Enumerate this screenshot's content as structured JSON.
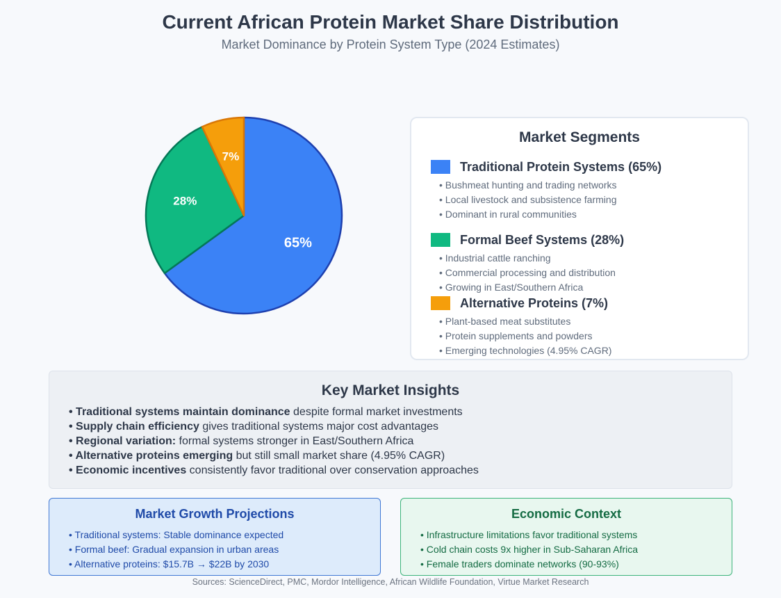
{
  "header": {
    "title": "Current African Protein Market Share Distribution",
    "subtitle": "Market Dominance by Protein System Type (2024 Estimates)"
  },
  "chart_data": {
    "type": "pie",
    "title": "Current African Protein Market Share Distribution",
    "slices": [
      {
        "label": "Traditional Protein Systems",
        "value": 65,
        "pct_label": "65%",
        "color": "#3b82f6",
        "stroke": "#1e40af"
      },
      {
        "label": "Formal Beef Systems",
        "value": 28,
        "pct_label": "28%",
        "color": "#10b981",
        "stroke": "#047857"
      },
      {
        "label": "Alternative Proteins",
        "value": 7,
        "pct_label": "7%",
        "color": "#f59e0b",
        "stroke": "#d97706"
      }
    ],
    "data_labels_shown": [
      "65%",
      "28%",
      "7%"
    ],
    "legend_position": "right"
  },
  "segments": {
    "title": "Market Segments",
    "items": [
      {
        "title": "Traditional Protein Systems (65%)",
        "color": "#3b82f6",
        "bullets": [
          "Bushmeat hunting and trading networks",
          "Local livestock and subsistence farming",
          "Dominant in rural communities"
        ]
      },
      {
        "title": "Formal Beef Systems (28%)",
        "color": "#10b981",
        "bullets": [
          "Industrial cattle ranching",
          "Commercial processing and distribution",
          "Growing in East/Southern Africa"
        ]
      },
      {
        "title": "Alternative Proteins (7%)",
        "color": "#f59e0b",
        "bullets": [
          "Plant-based meat substitutes",
          "Protein supplements and powders",
          "Emerging technologies (4.95% CAGR)"
        ]
      }
    ]
  },
  "insights": {
    "title": "Key Market Insights",
    "items": [
      {
        "bold": "Traditional systems maintain dominance",
        "rest": " despite formal market investments"
      },
      {
        "bold": "Supply chain efficiency",
        "rest": " gives traditional systems major cost advantages"
      },
      {
        "bold": "Regional variation:",
        "rest": " formal systems stronger in East/Southern Africa"
      },
      {
        "bold": "Alternative proteins emerging",
        "rest": " but still small market share (4.95% CAGR)"
      },
      {
        "bold": "Economic incentives",
        "rest": " consistently favor traditional over conservation approaches"
      }
    ]
  },
  "growth": {
    "title": "Market Growth Projections",
    "items": [
      "Traditional systems: Stable dominance expected",
      "Formal beef: Gradual expansion in urban areas",
      "Alternative proteins: $15.7B → $22B by 2030"
    ]
  },
  "economic": {
    "title": "Economic Context",
    "items": [
      "Infrastructure limitations favor traditional systems",
      "Cold chain costs 9x higher in Sub-Saharan Africa",
      "Female traders dominate networks (90-93%)"
    ]
  },
  "sources": "Sources: ScienceDirect, PMC, Mordor Intelligence, African Wildlife Foundation, Virtue Market Research"
}
